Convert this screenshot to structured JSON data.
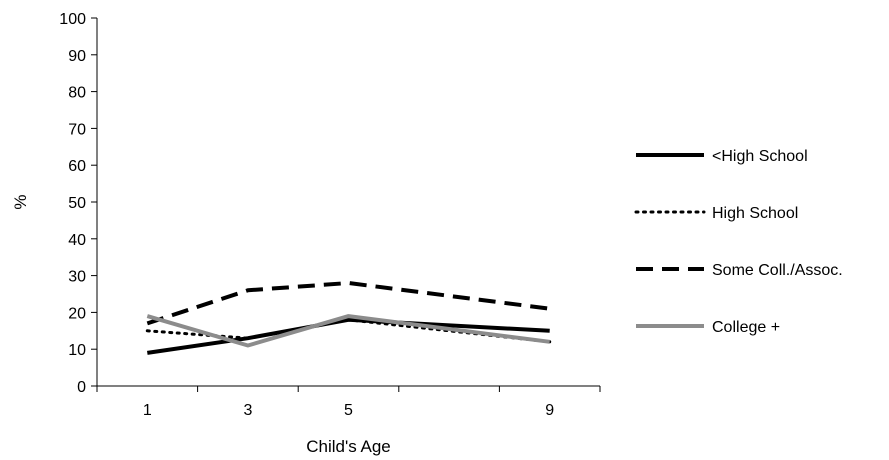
{
  "chart_data": {
    "type": "line",
    "title": "",
    "xlabel": "Child's Age",
    "ylabel": "%",
    "categories": [
      "1",
      "3",
      "5",
      "",
      "9"
    ],
    "x_tick_labels": [
      "1",
      "3",
      "5",
      "9"
    ],
    "y_ticks": [
      0,
      10,
      20,
      30,
      40,
      50,
      60,
      70,
      80,
      90,
      100
    ],
    "ylim": [
      0,
      100
    ],
    "grid": false,
    "legend_position": "right",
    "series": [
      {
        "name": "<High School",
        "style": "solid",
        "color": "#000000",
        "values": [
          9,
          13,
          18,
          null,
          15
        ]
      },
      {
        "name": "High School",
        "style": "dotted",
        "color": "#000000",
        "values": [
          15,
          13,
          18,
          null,
          12
        ]
      },
      {
        "name": "Some Coll./Assoc.",
        "style": "dashed",
        "color": "#000000",
        "values": [
          17,
          26,
          28,
          null,
          21
        ]
      },
      {
        "name": "College +",
        "style": "solid",
        "color": "#8c8c8c",
        "values": [
          19,
          11,
          19,
          null,
          12
        ]
      }
    ]
  }
}
